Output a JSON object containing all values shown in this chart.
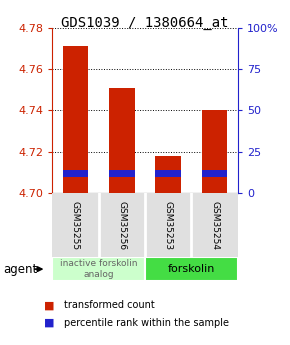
{
  "title": "GDS1039 / 1380664_at",
  "samples": [
    "GSM35255",
    "GSM35256",
    "GSM35253",
    "GSM35254"
  ],
  "bar_values": [
    4.771,
    4.751,
    4.718,
    4.74
  ],
  "blue_bar_bottom": 4.708,
  "blue_bar_height": 0.003,
  "ylim_left": [
    4.7,
    4.78
  ],
  "ylim_right": [
    0,
    100
  ],
  "yticks_left": [
    4.7,
    4.72,
    4.74,
    4.76,
    4.78
  ],
  "yticks_right": [
    0,
    25,
    50,
    75,
    100
  ],
  "bar_color": "#cc2200",
  "percentile_color": "#2222cc",
  "bar_width": 0.55,
  "group1_label": "inactive forskolin\nanalog",
  "group2_label": "forskolin",
  "group1_color": "#ccffcc",
  "group2_color": "#44dd44",
  "agent_label": "agent",
  "legend_red": "transformed count",
  "legend_blue": "percentile rank within the sample",
  "title_fontsize": 10,
  "tick_fontsize": 8,
  "sample_fontsize": 6.5,
  "group_fontsize": 7,
  "legend_fontsize": 7
}
